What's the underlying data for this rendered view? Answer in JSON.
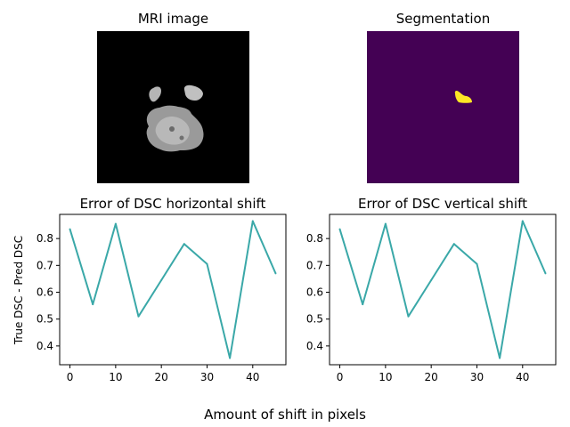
{
  "figure": {
    "xlabel": "Amount of shift in pixels",
    "ylabel": "True DSC - Pred DSC"
  },
  "panels": {
    "mri_title": "MRI image",
    "seg_title": "Segmentation"
  },
  "colors": {
    "line": "#3aa8a8",
    "seg_background": "#440154",
    "seg_foreground": "#fde725",
    "mri_background": "#000000"
  },
  "chart_data": [
    {
      "type": "line",
      "title": "Error of DSC horizontal shift",
      "xlabel": "",
      "ylabel": "True DSC - Pred DSC",
      "x": [
        0,
        5,
        10,
        15,
        20,
        25,
        30,
        35,
        40,
        45
      ],
      "series": [
        {
          "values": [
            0.835,
            0.555,
            0.855,
            0.51,
            0.645,
            0.78,
            0.705,
            0.355,
            0.865,
            0.67
          ]
        }
      ],
      "xlim": [
        -2.25,
        47.25
      ],
      "ylim": [
        0.33,
        0.89
      ],
      "xticks": [
        0,
        10,
        20,
        30,
        40
      ],
      "yticks": [
        0.4,
        0.5,
        0.6,
        0.7,
        0.8
      ]
    },
    {
      "type": "line",
      "title": "Error of DSC vertical shift",
      "xlabel": "",
      "ylabel": "",
      "x": [
        0,
        5,
        10,
        15,
        20,
        25,
        30,
        35,
        40,
        45
      ],
      "series": [
        {
          "values": [
            0.835,
            0.555,
            0.855,
            0.51,
            0.645,
            0.78,
            0.705,
            0.355,
            0.865,
            0.67
          ]
        }
      ],
      "xlim": [
        -2.25,
        47.25
      ],
      "ylim": [
        0.33,
        0.89
      ],
      "xticks": [
        0,
        10,
        20,
        30,
        40
      ],
      "yticks": [
        0.4,
        0.5,
        0.6,
        0.7,
        0.8
      ]
    }
  ]
}
